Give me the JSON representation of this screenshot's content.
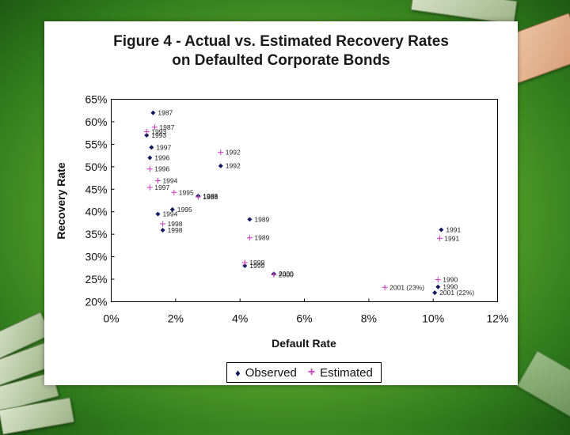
{
  "chart_data": {
    "type": "scatter",
    "title_line1": "Figure 4 - Actual vs. Estimated Recovery Rates",
    "title_line2": "on Defaulted Corporate Bonds",
    "xlabel": "Default Rate",
    "ylabel": "Recovery Rate",
    "xlim": [
      0,
      12
    ],
    "ylim": [
      20,
      65
    ],
    "x_ticks": [
      0,
      2,
      4,
      6,
      8,
      10,
      12
    ],
    "x_tick_labels": [
      "0%",
      "2%",
      "4%",
      "6%",
      "8%",
      "10%",
      "12%"
    ],
    "y_ticks": [
      20,
      25,
      30,
      35,
      40,
      45,
      50,
      55,
      60,
      65
    ],
    "y_tick_labels": [
      "20%",
      "25%",
      "30%",
      "35%",
      "40%",
      "45%",
      "50%",
      "55%",
      "60%",
      "65%"
    ],
    "legend_position": "bottom",
    "colors": {
      "observed": "#101a60",
      "estimated": "#c844c0"
    },
    "series": [
      {
        "name": "Observed",
        "marker": "dot",
        "points": [
          {
            "x": 1.3,
            "y": 62.0,
            "label": "1987"
          },
          {
            "x": 1.1,
            "y": 57.0,
            "label": "1993"
          },
          {
            "x": 1.25,
            "y": 54.3,
            "label": "1997"
          },
          {
            "x": 1.2,
            "y": 52.0,
            "label": "1996"
          },
          {
            "x": 3.4,
            "y": 50.2,
            "label": "1992"
          },
          {
            "x": 2.7,
            "y": 43.5,
            "label": "1988"
          },
          {
            "x": 1.9,
            "y": 40.5,
            "label": "1995"
          },
          {
            "x": 1.45,
            "y": 39.5,
            "label": "1994"
          },
          {
            "x": 1.6,
            "y": 35.9,
            "label": "1998"
          },
          {
            "x": 4.3,
            "y": 38.3,
            "label": "1989"
          },
          {
            "x": 10.25,
            "y": 36.0,
            "label": "1991"
          },
          {
            "x": 4.15,
            "y": 28.0,
            "label": "1999"
          },
          {
            "x": 5.05,
            "y": 26.2,
            "label": "2000"
          },
          {
            "x": 10.15,
            "y": 23.3,
            "label": "1990"
          },
          {
            "x": 10.05,
            "y": 22.0,
            "label": "2001 (22%)"
          }
        ]
      },
      {
        "name": "Estimated",
        "marker": "plus",
        "points": [
          {
            "x": 1.35,
            "y": 58.8,
            "label": "1987"
          },
          {
            "x": 1.1,
            "y": 57.8,
            "label": "1993"
          },
          {
            "x": 3.4,
            "y": 53.2,
            "label": "1992"
          },
          {
            "x": 1.2,
            "y": 49.5,
            "label": "1996"
          },
          {
            "x": 1.45,
            "y": 46.9,
            "label": "1994"
          },
          {
            "x": 1.2,
            "y": 45.4,
            "label": "1997"
          },
          {
            "x": 1.95,
            "y": 44.3,
            "label": "1995"
          },
          {
            "x": 2.7,
            "y": 43.3,
            "label": "1988"
          },
          {
            "x": 1.6,
            "y": 37.3,
            "label": "1998"
          },
          {
            "x": 4.3,
            "y": 34.2,
            "label": "1989"
          },
          {
            "x": 10.2,
            "y": 34.1,
            "label": "1991"
          },
          {
            "x": 4.15,
            "y": 28.7,
            "label": "1999"
          },
          {
            "x": 5.05,
            "y": 26.0,
            "label": "2000"
          },
          {
            "x": 10.15,
            "y": 24.9,
            "label": "1990"
          },
          {
            "x": 8.5,
            "y": 23.2,
            "label": "2001 (23%)"
          }
        ]
      }
    ]
  },
  "legend": {
    "observed_label": "Observed",
    "estimated_label": "Estimated",
    "observed_symbol": "♦",
    "estimated_symbol": "+"
  }
}
